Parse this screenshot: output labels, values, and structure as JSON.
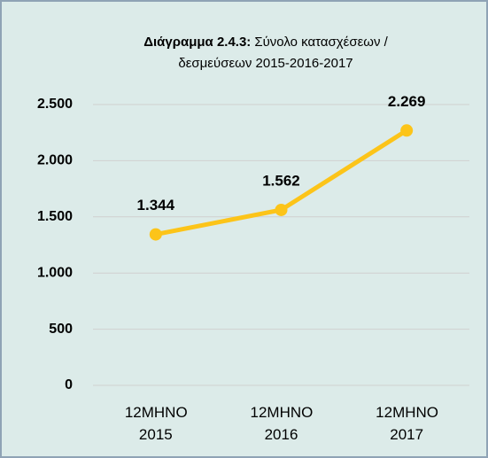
{
  "chart_data": {
    "type": "line",
    "title": [
      "Διάγραμμα 2.4.3:",
      "Σύνολο κατασχέσεων /",
      "δεσμεύσεων 2015-2016-2017"
    ],
    "categories": [
      "12MHNO 2015",
      "12MHNO 2016",
      "12MHNO 2017"
    ],
    "values": [
      1344,
      1562,
      2269
    ],
    "value_labels": [
      "1.344",
      "1.562",
      "2.269"
    ],
    "color": "#fcc419",
    "ylim": [
      0,
      2500
    ],
    "yticks": [
      0,
      500,
      {
        "value": 1000,
        "label": "1.000"
      },
      {
        "value": 1500,
        "label": "1.500"
      },
      {
        "value": 2000,
        "label": "2.000"
      },
      {
        "value": 2500,
        "label": "2.500"
      }
    ],
    "grid": true
  }
}
